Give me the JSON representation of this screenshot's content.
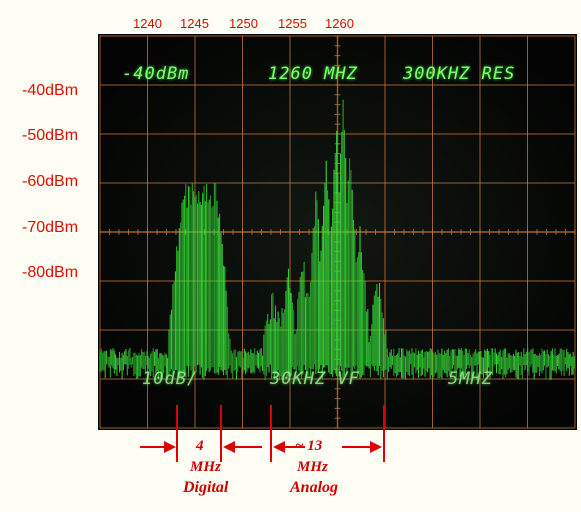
{
  "frequency_labels": [
    "1240",
    "1245",
    "1250",
    "1255",
    "1260"
  ],
  "dbm_labels": [
    "-40dBm",
    "-50dBm",
    "-60dBm",
    "-70dBm",
    "-80dBm"
  ],
  "screen": {
    "ref_level": "-40dBm",
    "center_freq": "1260 MHZ",
    "resolution": "300KHZ RES",
    "scale": "10dB/",
    "video_filter": "30KHZ VF",
    "span": "5MHZ"
  },
  "annotations": {
    "digital_width": "4",
    "digital_unit": "MHz",
    "digital_label": "Digital",
    "analog_width": "~ 13",
    "analog_unit": "MHz",
    "analog_label": "Analog"
  },
  "colors": {
    "trace": "#39e23a",
    "graticule": "#d07a3a",
    "annotation": "#cc0000"
  }
}
